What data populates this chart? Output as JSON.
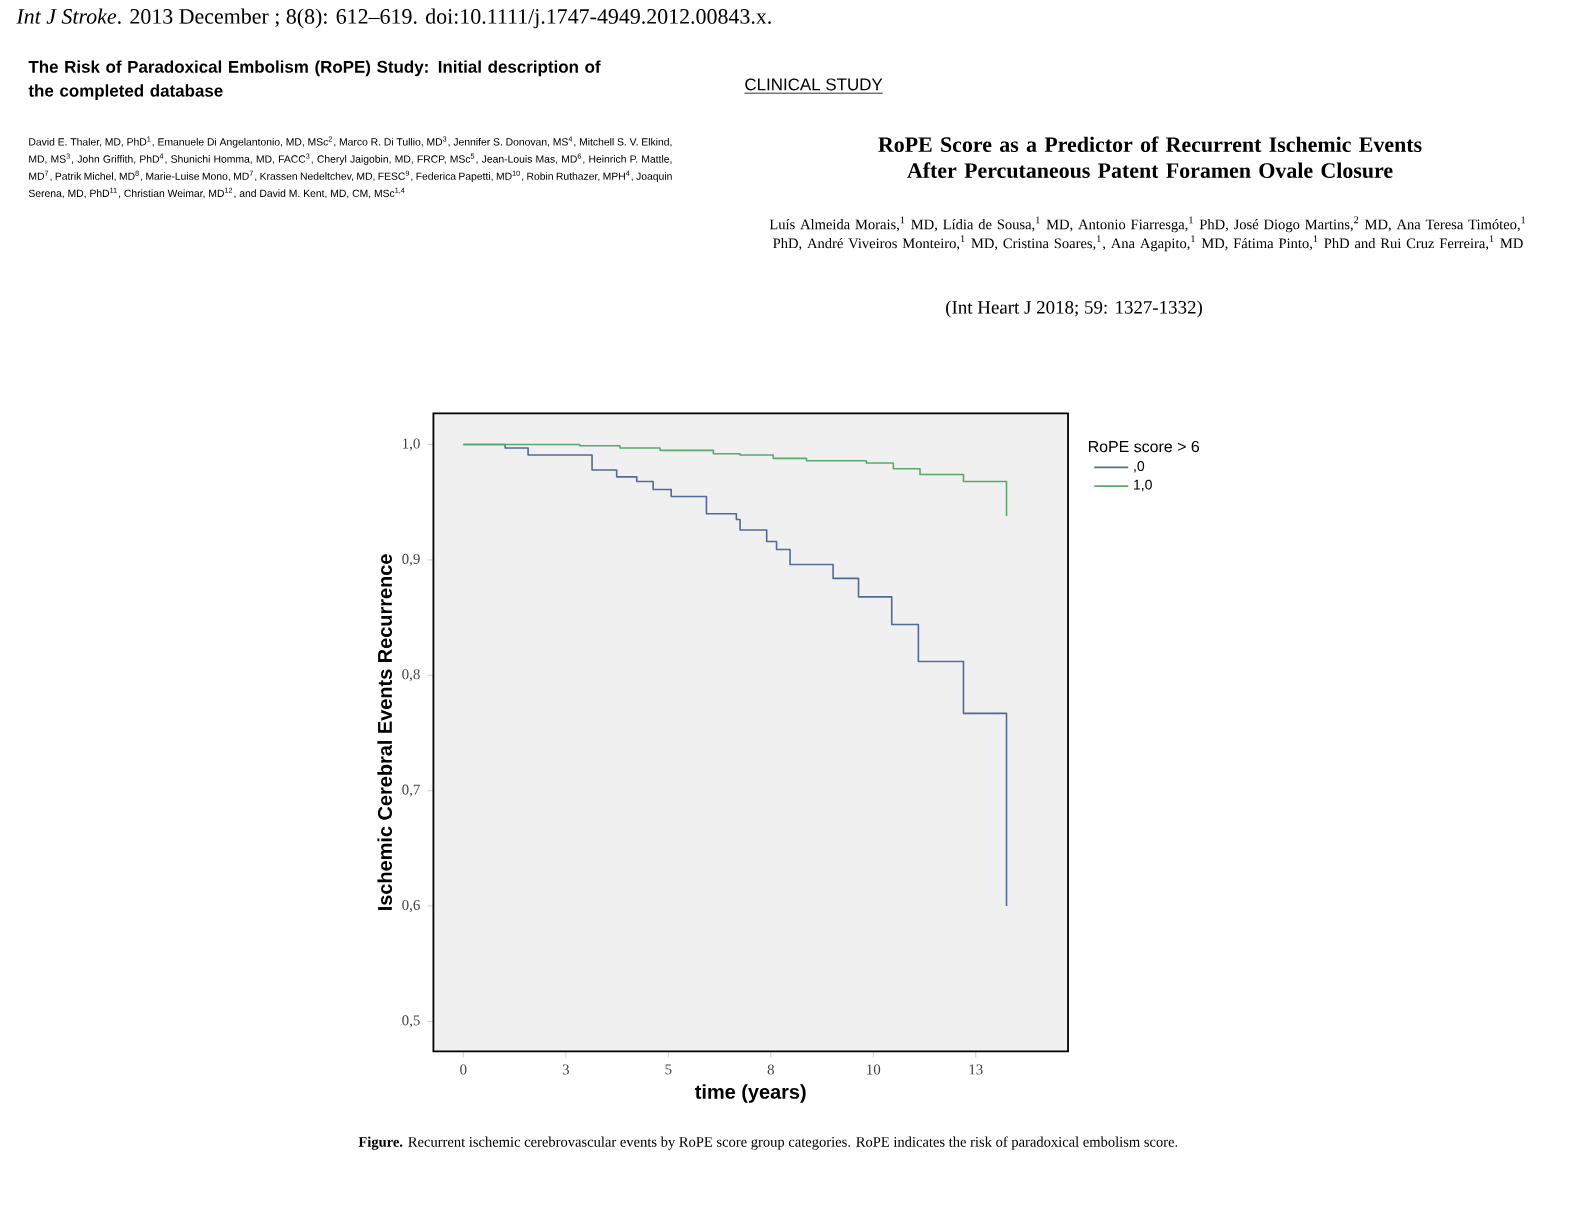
{
  "chart_data": {
    "type": "step",
    "xlabel": "time (years)",
    "ylabel": "Ischemic Cerebral Events Recurrence",
    "legend_title": "RoPE score > 6",
    "series": [
      {
        "name": ",0",
        "color": "#55689a",
        "x": [
          0,
          1.02,
          1.58,
          3.14,
          3.74,
          4.23,
          4.63,
          5.07,
          5.93,
          6.66,
          6.75,
          7.4,
          7.64,
          7.97,
          9.02,
          9.64,
          10.45,
          11.1,
          12.2,
          13.25
        ],
        "values": [
          1.0,
          0.997,
          0.991,
          0.978,
          0.972,
          0.968,
          0.961,
          0.955,
          0.94,
          0.935,
          0.926,
          0.916,
          0.909,
          0.896,
          0.884,
          0.868,
          0.844,
          0.812,
          0.767,
          0.6
        ]
      },
      {
        "name": "1,0",
        "color": "#5aa86c",
        "x": [
          0,
          2.84,
          3.82,
          4.8,
          6.1,
          6.75,
          7.56,
          8.37,
          9.83,
          10.49,
          11.14,
          12.2,
          13.25
        ],
        "values": [
          1.0,
          0.999,
          0.997,
          0.995,
          0.992,
          0.991,
          0.988,
          0.986,
          0.984,
          0.979,
          0.974,
          0.968,
          0.938
        ]
      }
    ],
    "xlim": [
      -0.73,
      14.75
    ],
    "ylim": [
      0.474,
      1.027
    ],
    "xticks": [
      0,
      {
        "value": 2.5,
        "label": "3"
      },
      {
        "value": 5,
        "label": "5"
      },
      {
        "value": 7.5,
        "label": "8"
      },
      {
        "value": 10,
        "label": "10"
      },
      {
        "value": 12.5,
        "label": "13"
      }
    ],
    "yticks": [
      {
        "value": 0.5,
        "label": "0,5"
      },
      {
        "value": 0.6,
        "label": "0,6"
      },
      {
        "value": 0.7,
        "label": "0,7"
      },
      {
        "value": 0.8,
        "label": "0,8"
      },
      {
        "value": 0.9,
        "label": "0,9"
      },
      {
        "value": 1.0,
        "label": "1,0"
      }
    ],
    "grid": false,
    "legend": "right",
    "marker": "none",
    "line_style": "solid",
    "annotations": [
      "*Int J Stroke*. 2013 December ; 8(8): 612–619. doi:10.1111/j.1747-4949.2012.00843.x.",
      "The Risk of Paradoxical Embolism (RoPE) Study: Initial description of the completed database",
      "David E. Thaler, MD, PhD$^{1}$, Emanuele Di Angelantonio, MD, MSc$^{2}$, Marco R. Di Tullio, MD$^{3}$, Jennifer S. Donovan, MS$^{4}$, Mitchell S. V. Elkind, MD, MS$^{3}$, John Griffith, PhD$^{4}$, Shunichi Homma, MD, FACC$^{3}$, Cheryl Jaigobin, MD, FRCP, MSc$^{5}$, Jean-Louis Mas, MD$^{6}$, Heinrich P. Mattle, MD$^{7}$, Patrik Michel, MD$^{8}$, Marie-Luise Mono, MD$^{7}$, Krassen Nedeltchev, MD, FESC$^{9}$, Federica Papetti, MD$^{10}$, Robin Ruthazer, MPH$^{4}$, Joaquin Serena, MD, PhD$^{11}$, Christian Weimar, MD$^{12}$, and David M. Kent, MD, CM, MSc$^{1,4}$",
      "CLINICAL STUDY",
      "RoPE Score as a Predictor of Recurrent Ischemic Events After Percutaneous Patent Foramen Ovale Closure",
      "Luís Almeida Morais,$^{1}$ MD, Lídia de Sousa,$^{1}$ MD, Antonio Fiarresga,$^{1}$ PhD, José Diogo Martins,$^{2}$ MD, Ana Teresa Timóteo,$^{1}$ PhD, André Viveiros Monteiro,$^{1}$ MD, Cristina Soares,$^{1}$, Ana Agapito,$^{1}$ MD, Fátima Pinto,$^{1}$ PhD and Rui Cruz Ferreira,$^{1}$ MD",
      "(Int Heart J 2018; 59: 1327-1332)",
      "**Figure.** Recurrent ischemic cerebrovascular events by RoPE score group categories. RoPE indicates the risk of paradoxical embolism score."
    ]
  }
}
